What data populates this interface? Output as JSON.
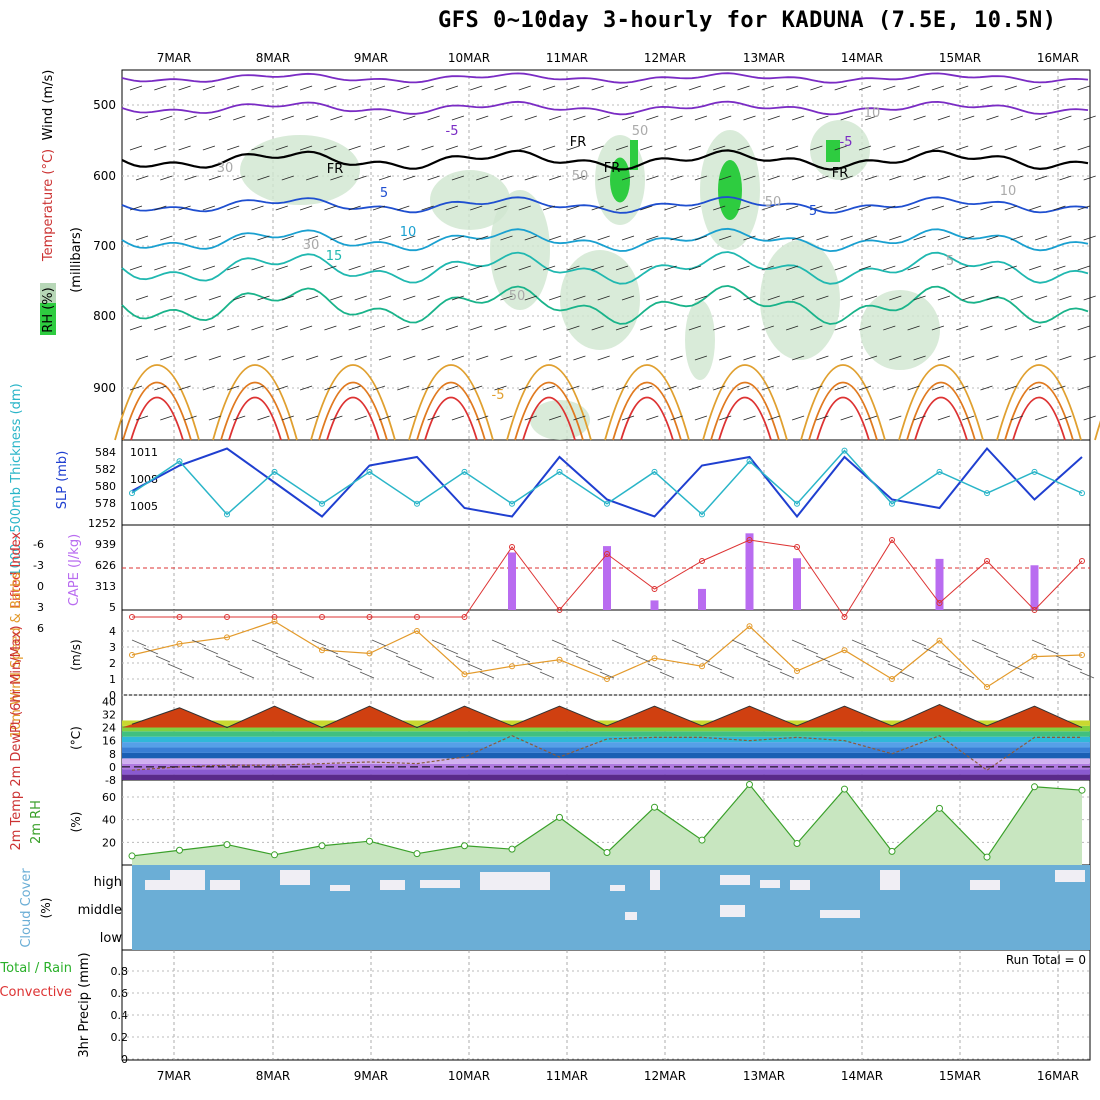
{
  "title": "GFS 0~10day 3-hourly for KADUNA (7.5E, 10.5N)",
  "dates": [
    "7MAR",
    "8MAR",
    "9MAR",
    "10MAR",
    "11MAR",
    "12MAR",
    "13MAR",
    "14MAR",
    "15MAR",
    "16MAR"
  ],
  "colors": {
    "rh_fill": "#2ecc40",
    "cloud": "#6baed6",
    "cloud_gap": "#f0eef4",
    "slp": "#1f3fd0",
    "thickness": "#2ab5c8",
    "cape": "#b96cf0",
    "lifted": "#dd3333",
    "wind": "#e39a2b",
    "rh2m": "#3aa02a"
  },
  "panels": {
    "upper": {
      "label_rh": "RH (%)",
      "label_temp": "Temperature (°C)",
      "label_wind": "Wind (m/s)",
      "label_p": "(millibars)",
      "ticks": [
        "500",
        "600",
        "700",
        "800",
        "900"
      ],
      "contour_labels": [
        "-5",
        "5",
        "10",
        "15",
        "FR",
        "FR",
        "FR",
        "FR",
        "-5",
        "5",
        "50",
        "30",
        "30",
        "10",
        "10",
        "50",
        "50",
        "50",
        "-5",
        "5"
      ]
    },
    "slp": {
      "label_thick": "1000~500mb Thickness (dm)",
      "label_slp": "SLP (mb)",
      "left_ticks": [
        "584",
        "582",
        "580",
        "578"
      ],
      "right_ticks": [
        "1011",
        "1008",
        "1005"
      ]
    },
    "cape": {
      "label_li": "Lifted Index",
      "label_cape": "CAPE (J/kg)",
      "left_ticks": [
        "-6",
        "-3",
        "0",
        "3",
        "6"
      ],
      "right_ticks": [
        "1252",
        "939",
        "626",
        "313",
        "5"
      ]
    },
    "wind": {
      "label": "10m Wind Speed & Barbs",
      "unit": "(m/s)",
      "ticks": [
        "4",
        "3",
        "2",
        "1",
        "0"
      ]
    },
    "temp": {
      "label": "2m Temp 2m DewPt (6hr Min/Max)",
      "unit": "(°C)",
      "ticks": [
        "40",
        "32",
        "24",
        "16",
        "8",
        "0",
        "-8"
      ]
    },
    "rh": {
      "label": "2m RH",
      "unit": "(%)",
      "ticks": [
        "60",
        "40",
        "20"
      ]
    },
    "cloud": {
      "label": "Cloud Cover",
      "unit": "(%)",
      "levels": [
        "high",
        "middle",
        "low"
      ]
    },
    "precip": {
      "label1": "Total / Rain",
      "label2": "Convective",
      "label3": "3hr Precip (mm)",
      "run_total": "Run Total = 0",
      "ticks": [
        "0.8",
        "0.6",
        "0.4",
        "0.2",
        "0"
      ]
    }
  },
  "chart_data": {
    "type": "line",
    "x": [
      "6MAR 12Z",
      "7MAR 00Z",
      "7MAR 12Z",
      "8MAR 00Z",
      "8MAR 12Z",
      "9MAR 00Z",
      "9MAR 12Z",
      "10MAR 00Z",
      "10MAR 12Z",
      "11MAR 00Z",
      "11MAR 12Z",
      "12MAR 00Z",
      "12MAR 12Z",
      "13MAR 00Z",
      "13MAR 12Z",
      "14MAR 00Z",
      "14MAR 12Z",
      "15MAR 00Z",
      "15MAR 12Z",
      "16MAR 00Z",
      "16MAR 12Z"
    ],
    "series": [
      {
        "name": "SLP (mb)",
        "values": [
          1007,
          1010,
          1012,
          1008,
          1004,
          1010,
          1011,
          1005,
          1004,
          1011,
          1006,
          1004,
          1010,
          1011,
          1004,
          1011,
          1006,
          1005,
          1012,
          1006,
          1011
        ]
      },
      {
        "name": "1000~500mb Thickness (dm)",
        "values": [
          580,
          583,
          578,
          582,
          579,
          582,
          579,
          582,
          579,
          582,
          579,
          582,
          578,
          583,
          579,
          584,
          579,
          582,
          580,
          582,
          580
        ]
      },
      {
        "name": "CAPE (J/kg)",
        "values": [
          0,
          0,
          0,
          0,
          0,
          0,
          0,
          0,
          900,
          0,
          1000,
          150,
          330,
          1200,
          810,
          0,
          0,
          800,
          0,
          700,
          0
        ]
      },
      {
        "name": "Lifted Index",
        "values": [
          7,
          7,
          7,
          7,
          7,
          7,
          7,
          7,
          -3,
          6,
          -2,
          3,
          -1,
          -4,
          -3,
          7,
          -4,
          5,
          -1,
          6,
          -1
        ]
      },
      {
        "name": "10m Wind Speed (m/s)",
        "values": [
          2.5,
          3.2,
          3.6,
          4.6,
          2.8,
          2.6,
          4.0,
          1.3,
          1.8,
          2.2,
          1.0,
          2.3,
          1.8,
          4.3,
          1.5,
          2.8,
          1.0,
          3.4,
          0.5,
          2.4,
          2.5
        ]
      },
      {
        "name": "2m Temp (°C)",
        "values": [
          26,
          36,
          24,
          37,
          24,
          37,
          24,
          37,
          25,
          37,
          25,
          37,
          25,
          37,
          25,
          37,
          25,
          38,
          25,
          37,
          24
        ]
      },
      {
        "name": "2m DewPt (°C)",
        "values": [
          -2,
          0,
          1,
          1,
          2,
          3,
          2,
          6,
          19,
          6,
          17,
          18,
          18,
          16,
          18,
          16,
          8,
          19,
          -2,
          18,
          18
        ]
      },
      {
        "name": "2m RH (%)",
        "values": [
          8,
          13,
          18,
          9,
          17,
          21,
          10,
          17,
          14,
          42,
          11,
          51,
          22,
          71,
          19,
          67,
          12,
          50,
          7,
          69,
          66
        ]
      },
      {
        "name": "3hr Precip (mm)",
        "values": [
          0,
          0,
          0,
          0,
          0,
          0,
          0,
          0,
          0,
          0,
          0,
          0,
          0,
          0,
          0,
          0,
          0,
          0,
          0,
          0,
          0
        ]
      }
    ],
    "xlabel": "",
    "ylim_slp": [
      1003,
      1013
    ],
    "ylim_thick": [
      577,
      585
    ],
    "ylim_cape": [
      5,
      1252
    ],
    "ylim_li": [
      6,
      -6
    ],
    "ylim_wind": [
      0,
      5
    ],
    "ylim_temp": [
      -8,
      42
    ],
    "ylim_rh": [
      0,
      75
    ],
    "ylim_precip": [
      0,
      1
    ],
    "grid": true
  }
}
